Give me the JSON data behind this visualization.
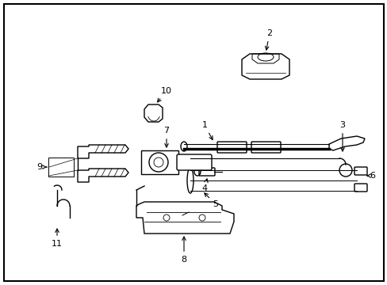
{
  "background_color": "#ffffff",
  "border_color": "#000000",
  "line_color": "#000000",
  "fig_width": 4.89,
  "fig_height": 3.6,
  "dpi": 100,
  "lw": 1.0,
  "border_lw": 1.5
}
